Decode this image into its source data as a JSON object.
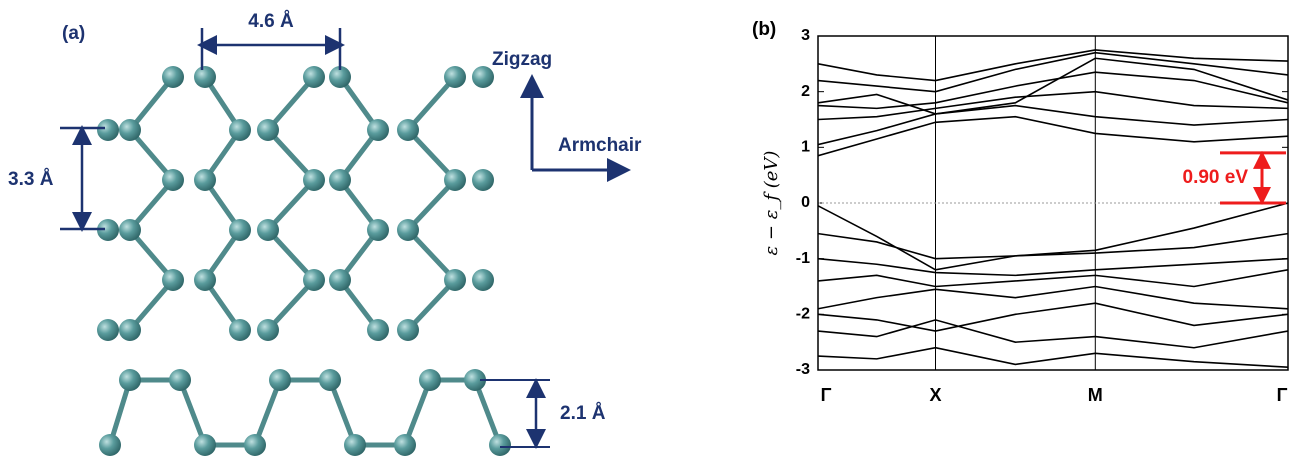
{
  "panel_a": {
    "label": "(a)",
    "top_width": "4.6 Å",
    "top_height": "3.3 Å",
    "zigzag": "Zigzag",
    "armchair": "Armchair",
    "buckling": "2.1 Å"
  },
  "chart_data": {
    "type": "line",
    "panel_label": "(b)",
    "ylabel": "ε − ε_f (eV)",
    "x": [
      0,
      0.125,
      0.25,
      0.42,
      0.59,
      0.8,
      1
    ],
    "xlim": [
      0,
      1
    ],
    "ylim": [
      -3,
      3
    ],
    "xticks": [
      {
        "value": 0,
        "label": "Γ"
      },
      {
        "value": 0.25,
        "label": "X"
      },
      {
        "value": 0.59,
        "label": "M"
      },
      {
        "value": 1,
        "label": "Γ"
      }
    ],
    "yticks": [
      -3,
      -2,
      -1,
      0,
      1,
      2,
      3
    ],
    "zero_line": true,
    "series": [
      {
        "color": "#000000",
        "values": [
          0.85,
          1.15,
          1.45,
          1.55,
          1.25,
          1.1,
          1.2
        ]
      },
      {
        "color": "#000000",
        "values": [
          1.05,
          1.3,
          1.6,
          1.75,
          1.55,
          1.4,
          1.5
        ]
      },
      {
        "color": "#000000",
        "values": [
          1.5,
          1.55,
          1.7,
          1.9,
          2.0,
          1.75,
          1.7
        ]
      },
      {
        "color": "#000000",
        "values": [
          1.75,
          1.7,
          1.8,
          2.1,
          2.35,
          2.2,
          1.8
        ]
      },
      {
        "color": "#000000",
        "values": [
          1.8,
          1.95,
          1.6,
          1.8,
          2.6,
          2.4,
          1.85
        ]
      },
      {
        "color": "#000000",
        "values": [
          2.2,
          2.1,
          2.0,
          2.4,
          2.7,
          2.5,
          2.3
        ]
      },
      {
        "color": "#000000",
        "values": [
          2.5,
          2.3,
          2.2,
          2.5,
          2.75,
          2.6,
          2.55
        ]
      },
      {
        "color": "#000000",
        "values": [
          -0.05,
          -0.6,
          -1.2,
          -0.95,
          -0.85,
          -0.45,
          0.0
        ]
      },
      {
        "color": "#000000",
        "values": [
          -0.55,
          -0.7,
          -1.0,
          -0.95,
          -0.9,
          -0.8,
          -0.55
        ]
      },
      {
        "color": "#000000",
        "values": [
          -1.0,
          -1.1,
          -1.25,
          -1.3,
          -1.2,
          -1.1,
          -1.0
        ]
      },
      {
        "color": "#000000",
        "values": [
          -1.4,
          -1.3,
          -1.5,
          -1.4,
          -1.3,
          -1.5,
          -1.2
        ]
      },
      {
        "color": "#000000",
        "values": [
          -1.9,
          -1.7,
          -1.55,
          -1.7,
          -1.5,
          -1.8,
          -1.9
        ]
      },
      {
        "color": "#000000",
        "values": [
          -2.0,
          -2.1,
          -2.3,
          -2.0,
          -1.8,
          -2.2,
          -2.0
        ]
      },
      {
        "color": "#000000",
        "values": [
          -2.3,
          -2.4,
          -2.1,
          -2.5,
          -2.4,
          -2.6,
          -2.3
        ]
      },
      {
        "color": "#000000",
        "values": [
          -2.75,
          -2.8,
          -2.6,
          -2.9,
          -2.7,
          -2.85,
          -2.95
        ]
      }
    ],
    "annotation": {
      "text": "0.90 eV",
      "values": [
        0,
        0.9
      ],
      "color": "#ee1c1c"
    }
  }
}
